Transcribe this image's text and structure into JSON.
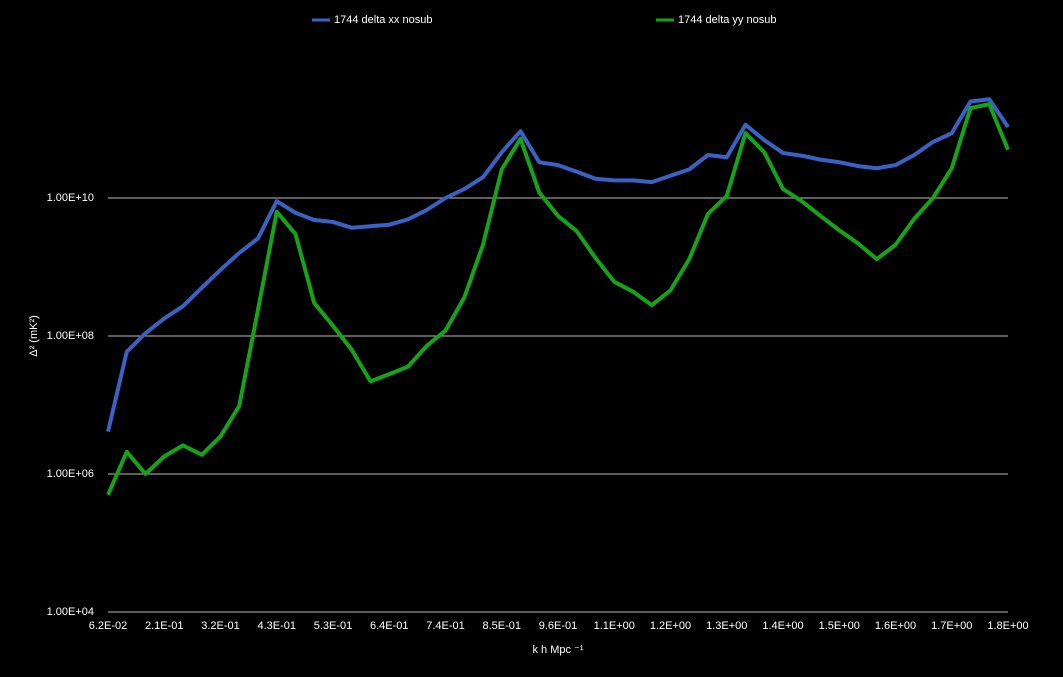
{
  "chart_data": {
    "type": "line",
    "log_y": true,
    "grid": true,
    "legend": "top",
    "x_label": "k h Mpc ⁻¹",
    "y_label": "Δ² (mK²)",
    "categories": [
      "6.2E-02",
      null,
      null,
      "2.1E-01",
      null,
      null,
      "3.2E-01",
      null,
      null,
      "4.3E-01",
      null,
      null,
      "5.3E-01",
      null,
      null,
      "6.4E-01",
      null,
      null,
      "7.4E-01",
      null,
      null,
      "8.5E-01",
      null,
      null,
      "9.6E-01",
      null,
      null,
      "1.1E+00",
      null,
      null,
      "1.2E+00",
      null,
      null,
      "1.3E+00",
      null,
      null,
      "1.4E+00",
      null,
      null,
      "1.5E+00",
      null,
      null,
      "1.6E+00",
      null,
      null,
      "1.7E+00",
      null,
      null,
      "1.8E+00"
    ],
    "ylim": [
      10000,
      1000000000000
    ],
    "yticks": [
      {
        "value": 10000,
        "label": "1.00E+04"
      },
      {
        "value": 1000000,
        "label": "1.00E+06"
      },
      {
        "value": 100000000,
        "label": "1.00E+08"
      },
      {
        "value": 10000000000,
        "label": "1.00E+10"
      }
    ],
    "series": [
      {
        "name": "1744 delta xx nosub",
        "color": "#3a62c4",
        "values": [
          4100000,
          59000000,
          110000000,
          180000000,
          270000000,
          500000000,
          910000000,
          1600000000,
          2600000000,
          9000000000,
          6100000000,
          4800000000,
          4500000000,
          3700000000,
          3900000000,
          4100000000,
          4900000000,
          6700000000,
          10000000000,
          13500000000,
          20000000000,
          46000000000,
          93000000000,
          33000000000,
          30000000000,
          24000000000,
          19000000000,
          18000000000,
          18000000000,
          17000000000,
          21000000000,
          26000000000,
          42000000000,
          39000000000,
          115000000000,
          69000000000,
          45000000000,
          41000000000,
          36000000000,
          33000000000,
          29000000000,
          27000000000,
          30000000000,
          42000000000,
          65000000000,
          87000000000,
          250000000000,
          270000000000,
          107000000000
        ]
      },
      {
        "name": "1744 delta yy nosub",
        "color": "#17a317",
        "values": [
          500000,
          2100000,
          1000000,
          1800000,
          2600000,
          1900000,
          3500000,
          9700000,
          240000000,
          6300000000,
          3000000000,
          300000000,
          140000000,
          63000000,
          22000000,
          28000000,
          36000000,
          72000000,
          120000000,
          360000000,
          2100000000,
          26000000000,
          72000000000,
          12000000000,
          5500000000,
          3300000000,
          1350000000,
          610000000,
          440000000,
          280000000,
          460000000,
          1300000000,
          5900000000,
          10700000000,
          87000000000,
          46000000000,
          13500000000,
          9000000000,
          5500000000,
          3400000000,
          2200000000,
          1300000000,
          2100000000,
          5000000000,
          10000000000,
          27000000000,
          200000000000,
          230000000000,
          50000000000
        ]
      }
    ]
  }
}
